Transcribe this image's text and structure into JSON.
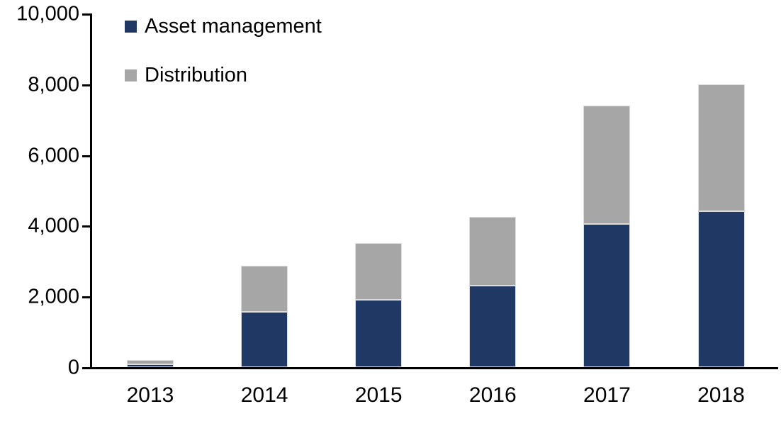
{
  "chart_data": {
    "type": "bar",
    "stacked": true,
    "title": "",
    "xlabel": "",
    "ylabel": "",
    "grid": false,
    "legend_position": "top-left-inside",
    "categories": [
      "2013",
      "2014",
      "2015",
      "2016",
      "2017",
      "2018"
    ],
    "series": [
      {
        "name": "Asset management",
        "color": "#1F3864",
        "values": [
          80,
          1560,
          1900,
          2300,
          4050,
          4400
        ]
      },
      {
        "name": "Distribution",
        "color": "#A6A6A6",
        "values": [
          120,
          1300,
          1600,
          1950,
          3350,
          3600
        ]
      }
    ],
    "totals": [
      200,
      2860,
      3500,
      4250,
      7400,
      8000
    ],
    "ylim": [
      0,
      10000
    ],
    "ytick_interval": 2000,
    "ytick_values": [
      0,
      2000,
      4000,
      6000,
      8000,
      10000
    ],
    "ytick_labels": [
      "0",
      "2,000",
      "4,000",
      "6,000",
      "8,000",
      "10,000"
    ],
    "axis_color": "#000000",
    "text_color": "#000000"
  }
}
